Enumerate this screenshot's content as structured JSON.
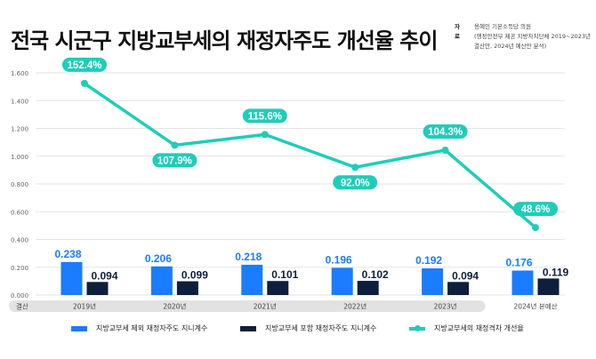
{
  "title": "전국 시군구 지방교부세의 재정자주도 개선율 추이",
  "source": {
    "label": "자료",
    "lines": [
      "용혜인 기본소득당 의원",
      "(행정안전부 제공 지방자치단체 2019~2023년",
      "결산안, 2024년 예산안 분석)"
    ]
  },
  "colors": {
    "bar_excl": "#1a7cff",
    "bar_incl": "#0d1f3c",
    "line": "#1ecdb9",
    "grid": "#e3e3e3",
    "band": "#e2e2e2"
  },
  "band_label": "결산",
  "chart_data": {
    "type": "bar+line",
    "title": "전국 시군구 지방교부세의 재정자주도 개선율 추이",
    "categories": [
      "2019년",
      "2020년",
      "2021년",
      "2022년",
      "2023년",
      "2024년 본예산"
    ],
    "y_ticks": [
      "0.000",
      "0.200",
      "0.400",
      "0.600",
      "0.800",
      "1.000",
      "1.200",
      "1.400",
      "1.600"
    ],
    "ylim": [
      0,
      1.6
    ],
    "grid": true,
    "legend_position": "bottom",
    "series": [
      {
        "name": "지방교부세 제외 재정자주도 지니계수",
        "type": "bar",
        "values": [
          0.238,
          0.206,
          0.218,
          0.196,
          0.192,
          0.176
        ],
        "labels": [
          "0.238",
          "0.206",
          "0.218",
          "0.196",
          "0.192",
          "0.176"
        ]
      },
      {
        "name": "지방교부세 포함 재정자주도 지니계수",
        "type": "bar",
        "values": [
          0.094,
          0.099,
          0.101,
          0.102,
          0.094,
          0.119
        ],
        "labels": [
          "0.094",
          "0.099",
          "0.101",
          "0.102",
          "0.094",
          "0.119"
        ]
      },
      {
        "name": "지방교부세의 재정격차 개선율",
        "type": "line",
        "unit": "%",
        "values": [
          152.4,
          107.9,
          115.6,
          92.0,
          104.3,
          48.6
        ],
        "labels": [
          "152.4%",
          "107.9%",
          "115.6%",
          "92.0%",
          "104.3%",
          "48.6%"
        ],
        "label_position": [
          "above",
          "below",
          "above",
          "below",
          "above",
          "above"
        ]
      }
    ]
  }
}
